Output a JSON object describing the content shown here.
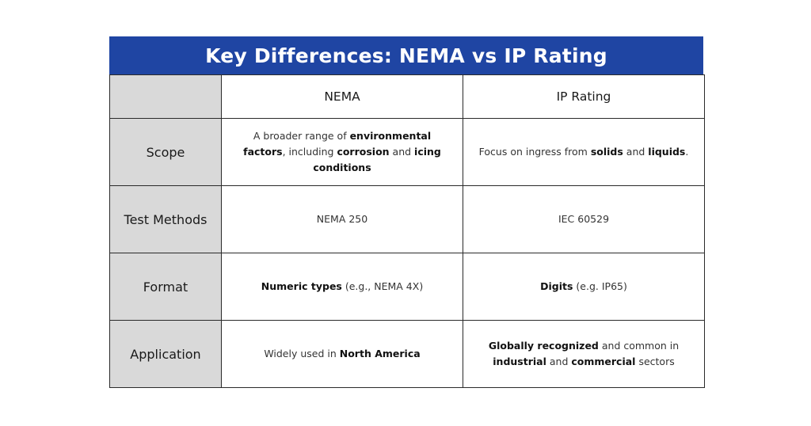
{
  "title": "Key Differences: NEMA vs IP Rating",
  "columns": [
    "",
    "NEMA",
    "IP Rating"
  ],
  "rows": [
    {
      "label": "Scope",
      "nema": [
        {
          "t": "A broader range of ",
          "b": false
        },
        {
          "t": "environmental factors",
          "b": true
        },
        {
          "t": ", including ",
          "b": false
        },
        {
          "t": "corrosion",
          "b": true
        },
        {
          "t": " and ",
          "b": false
        },
        {
          "t": "icing conditions",
          "b": true
        }
      ],
      "ip": [
        {
          "t": "Focus on ingress from ",
          "b": false
        },
        {
          "t": "solids",
          "b": true
        },
        {
          "t": " and ",
          "b": false
        },
        {
          "t": "liquids",
          "b": true
        },
        {
          "t": ".",
          "b": false
        }
      ]
    },
    {
      "label": "Test Methods",
      "nema": [
        {
          "t": "NEMA 250",
          "b": false
        }
      ],
      "ip": [
        {
          "t": "IEC 60529",
          "b": false
        }
      ]
    },
    {
      "label": "Format",
      "nema": [
        {
          "t": "Numeric types",
          "b": true
        },
        {
          "t": " (e.g., NEMA 4X)",
          "b": false
        }
      ],
      "ip": [
        {
          "t": "Digits",
          "b": true
        },
        {
          "t": " (e.g. IP65)",
          "b": false
        }
      ]
    },
    {
      "label": "Application",
      "nema": [
        {
          "t": "Widely used in ",
          "b": false
        },
        {
          "t": "North America",
          "b": true
        }
      ],
      "ip": [
        {
          "t": "Globally recognized",
          "b": true
        },
        {
          "t": " and common in ",
          "b": false
        },
        {
          "t": "industrial",
          "b": true
        },
        {
          "t": " and ",
          "b": false
        },
        {
          "t": "commercial",
          "b": true
        },
        {
          "t": " sectors",
          "b": false
        }
      ]
    }
  ],
  "colors": {
    "header_bg": "#1f45a3",
    "label_bg": "#d9d9d9"
  }
}
